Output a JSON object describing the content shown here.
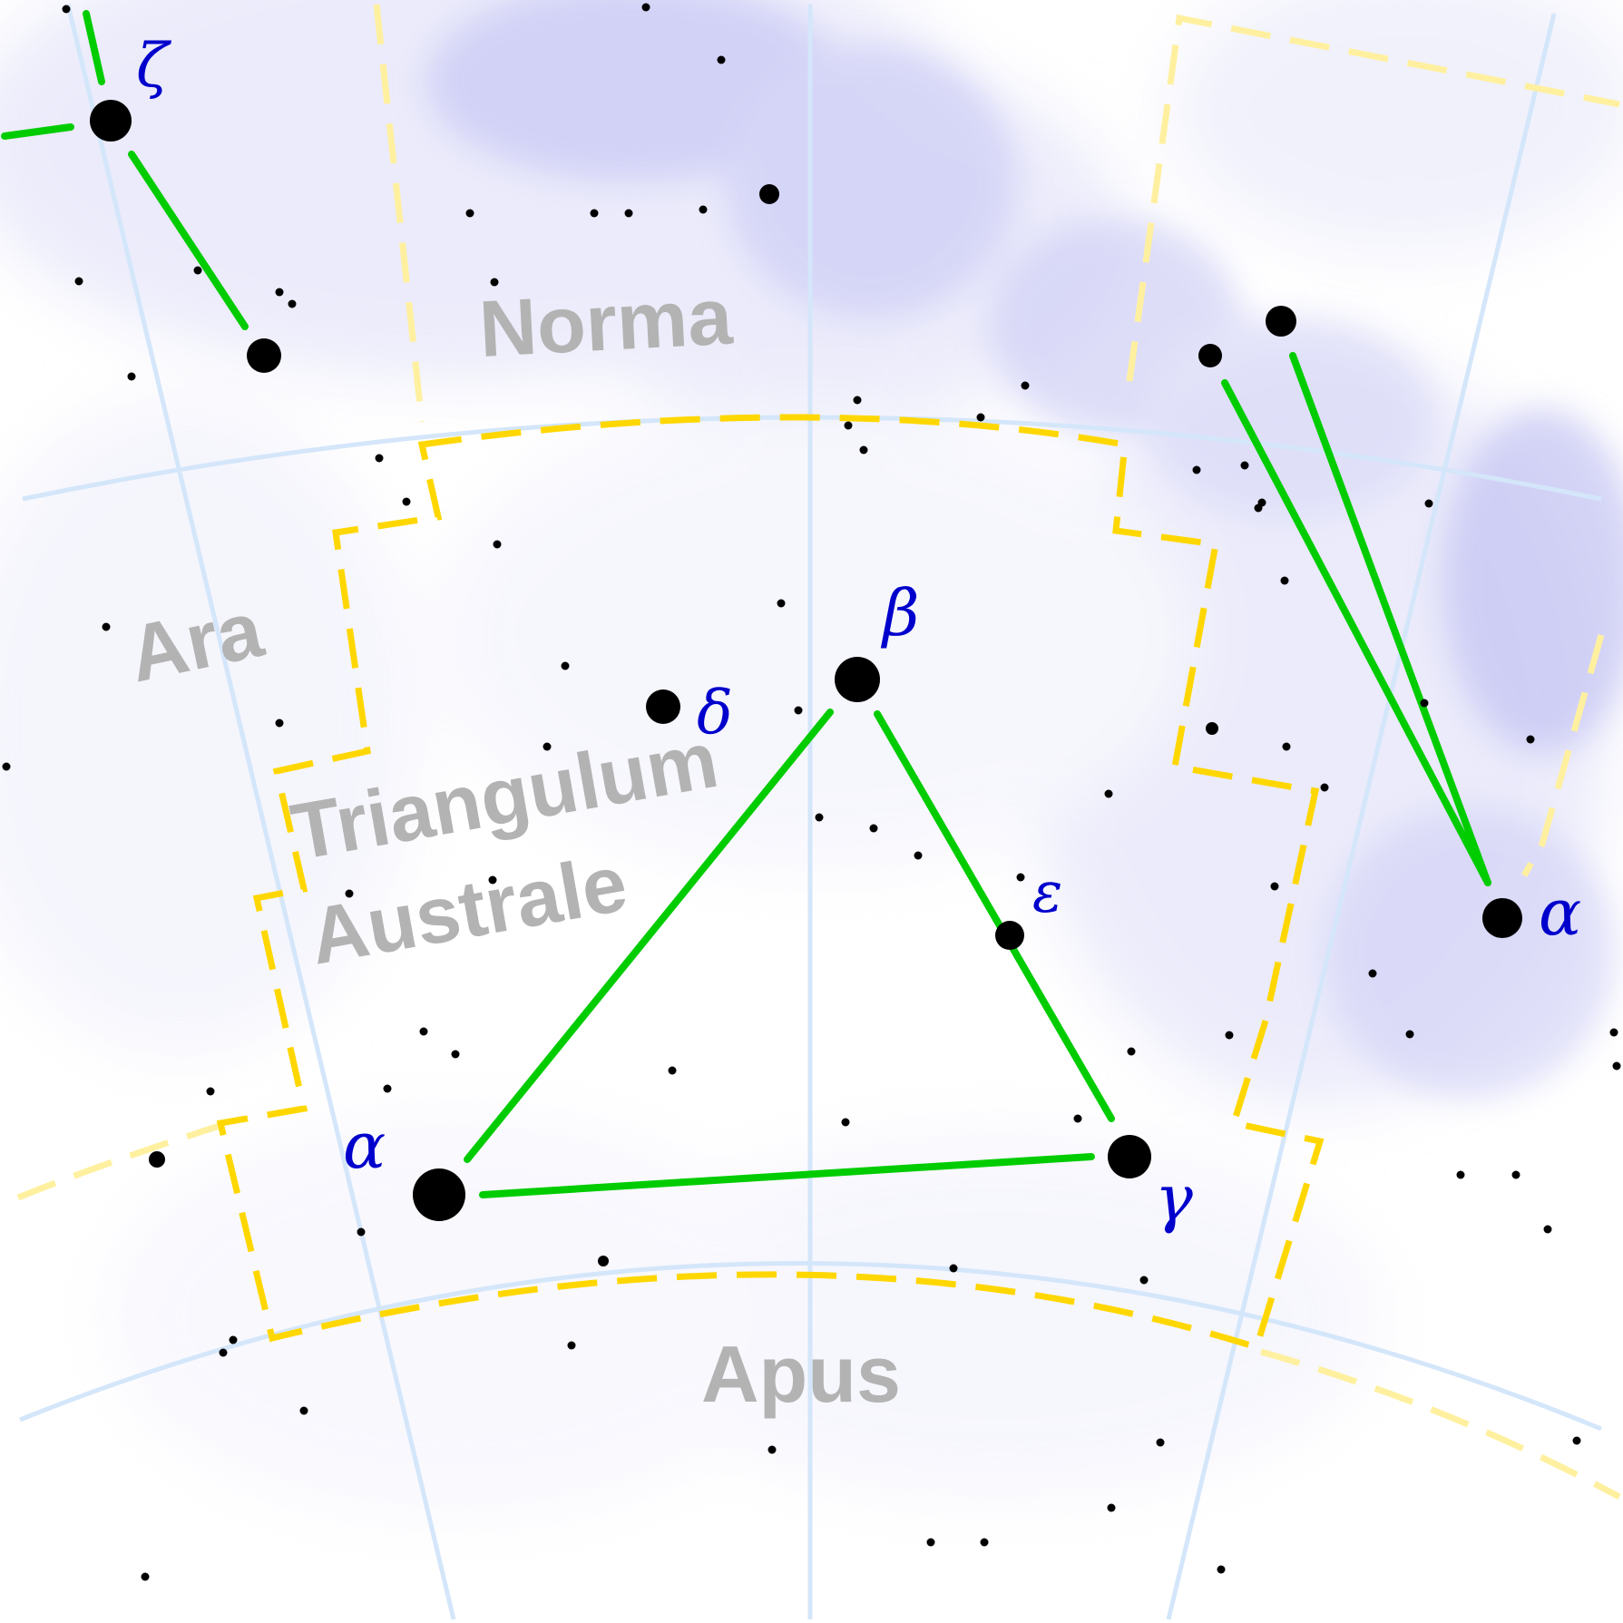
{
  "map": {
    "constellations": [
      {
        "id": "norma",
        "name": "Norma"
      },
      {
        "id": "ara",
        "name": "Ara"
      },
      {
        "id": "triangulum-australe",
        "lines": [
          "Triangulum",
          "Australe"
        ]
      },
      {
        "id": "apus",
        "name": "Apus"
      }
    ],
    "greek_labels": [
      {
        "id": "alpha-tra",
        "text": "α"
      },
      {
        "id": "beta-tra",
        "text": "β"
      },
      {
        "id": "gamma-tra",
        "text": "γ"
      },
      {
        "id": "delta-tra",
        "text": "δ"
      },
      {
        "id": "epsilon-tra",
        "text": "ε"
      },
      {
        "id": "zeta-ara",
        "text": "ζ"
      },
      {
        "id": "alpha-cir",
        "text": "α"
      }
    ],
    "colors": {
      "background": "#ffffff",
      "milky_way": "#c8c8f5",
      "grid": "#d4e6fa",
      "boundary": "#ffd700",
      "boundary_other": "#fff0a0",
      "figure_lines": "#00cc00",
      "stars": "#000000",
      "star_labels": "#0000cc",
      "constellation_labels": "#b3b3b3"
    }
  }
}
